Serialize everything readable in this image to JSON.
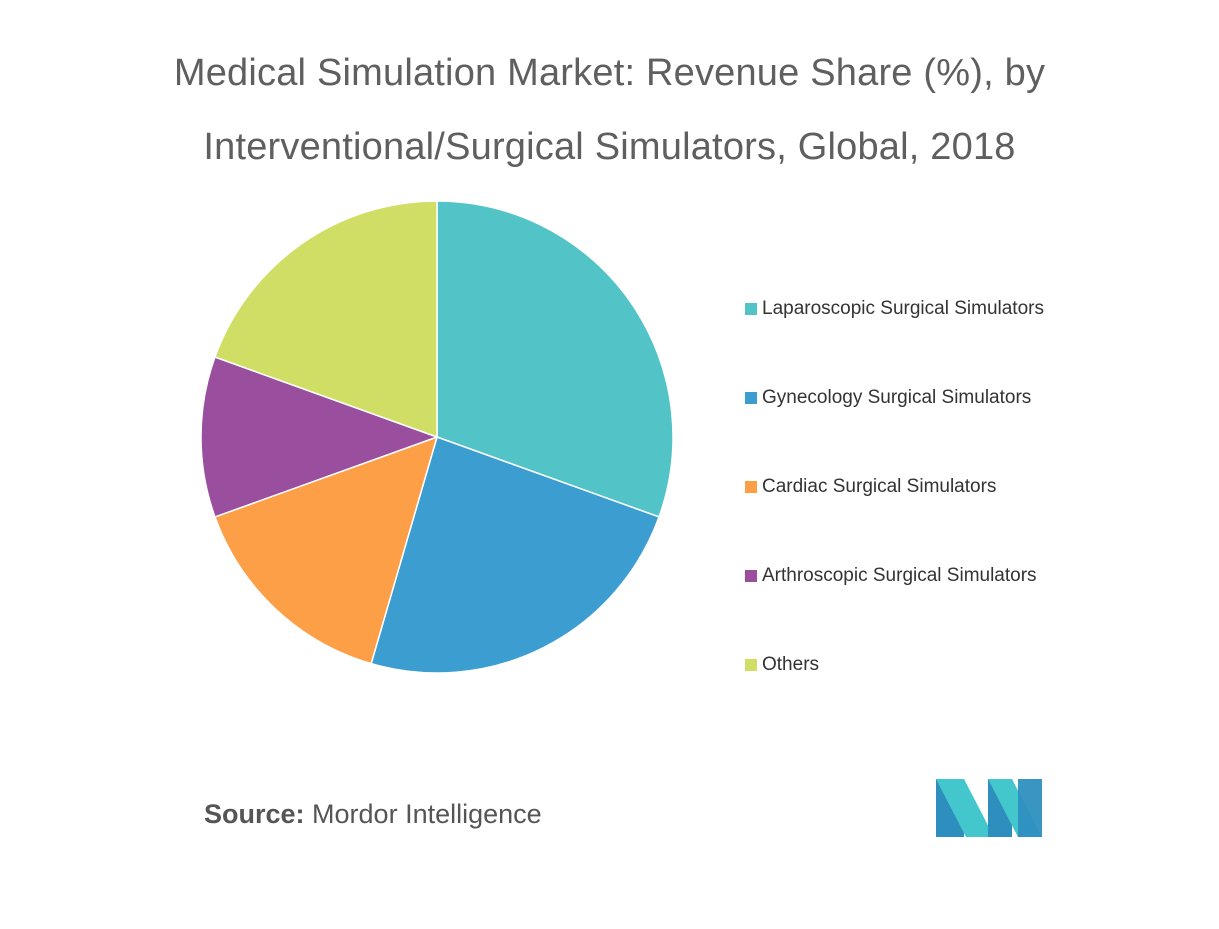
{
  "chart_data": {
    "type": "pie",
    "title": "Medical Simulation Market: Revenue Share (%), by Interventional/Surgical Simulators, Global, 2018",
    "title_lines": [
      "Medical Simulation Market: Revenue Share (%), by",
      "Interventional/Surgical Simulators, Global, 2018"
    ],
    "categories": [
      "Laparoscopic Surgical Simulators",
      "Gynecology Surgical Simulators",
      "Cardiac Surgical Simulators",
      "Arthroscopic Surgical Simulators",
      "Others"
    ],
    "values": [
      30.5,
      24,
      15,
      11,
      19.5
    ],
    "colors": [
      "#52c3c6",
      "#3c9dd0",
      "#fd9f46",
      "#9a4e9e",
      "#d0de66"
    ],
    "start_angle_deg": 0,
    "direction": "clockwise",
    "legend_position": "right"
  },
  "source": {
    "label": "Source:",
    "text": "Mordor Intelligence"
  },
  "logo": {
    "icon": "mordor-intelligence-logo",
    "colors": [
      "#2e8fbf",
      "#43c6cc"
    ]
  }
}
